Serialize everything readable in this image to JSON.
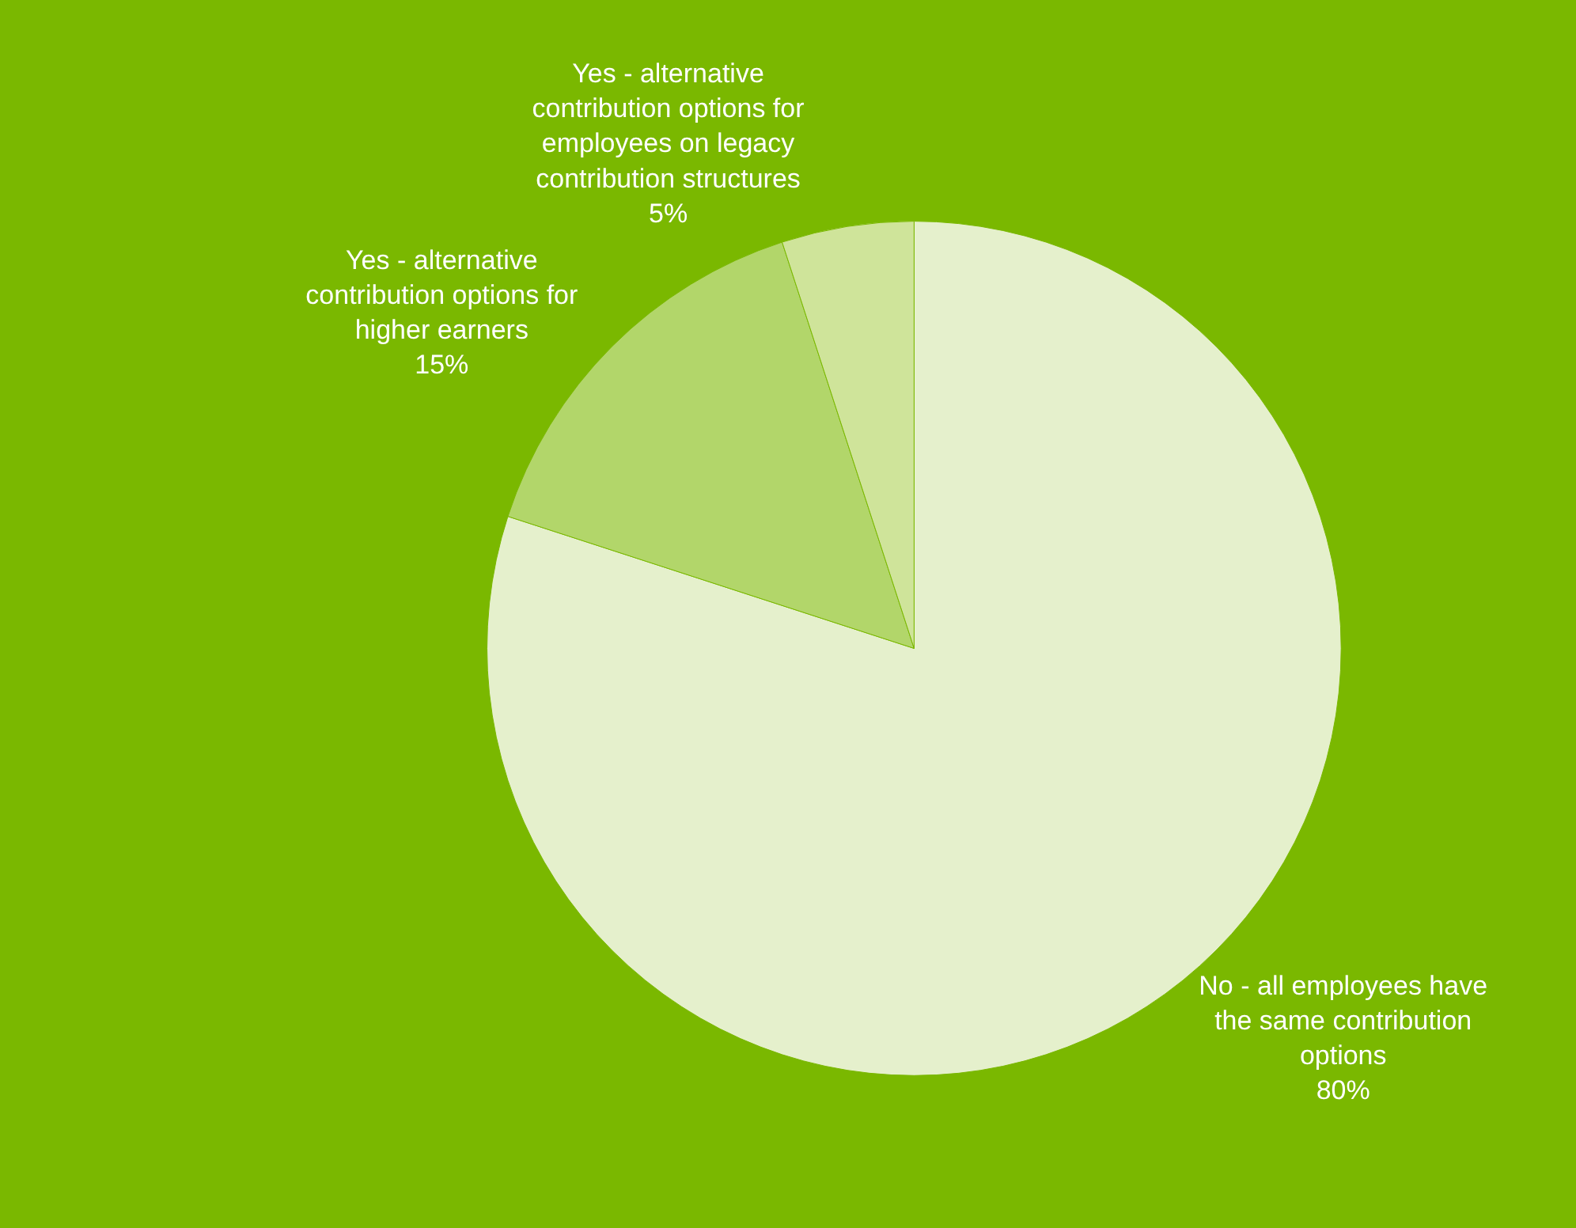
{
  "chart_data": {
    "type": "pie",
    "categories": [
      "No - all employees have the same contribution options",
      "Yes - alternative contribution options for higher earners",
      "Yes - alternative contribution options for employees on legacy contribution structures"
    ],
    "values": [
      80,
      15,
      5
    ],
    "value_labels": [
      "80%",
      "15%",
      "5%"
    ],
    "colors": [
      "#e5f0cc",
      "#b2d66a",
      "#cfe49a"
    ],
    "legend": false
  }
}
